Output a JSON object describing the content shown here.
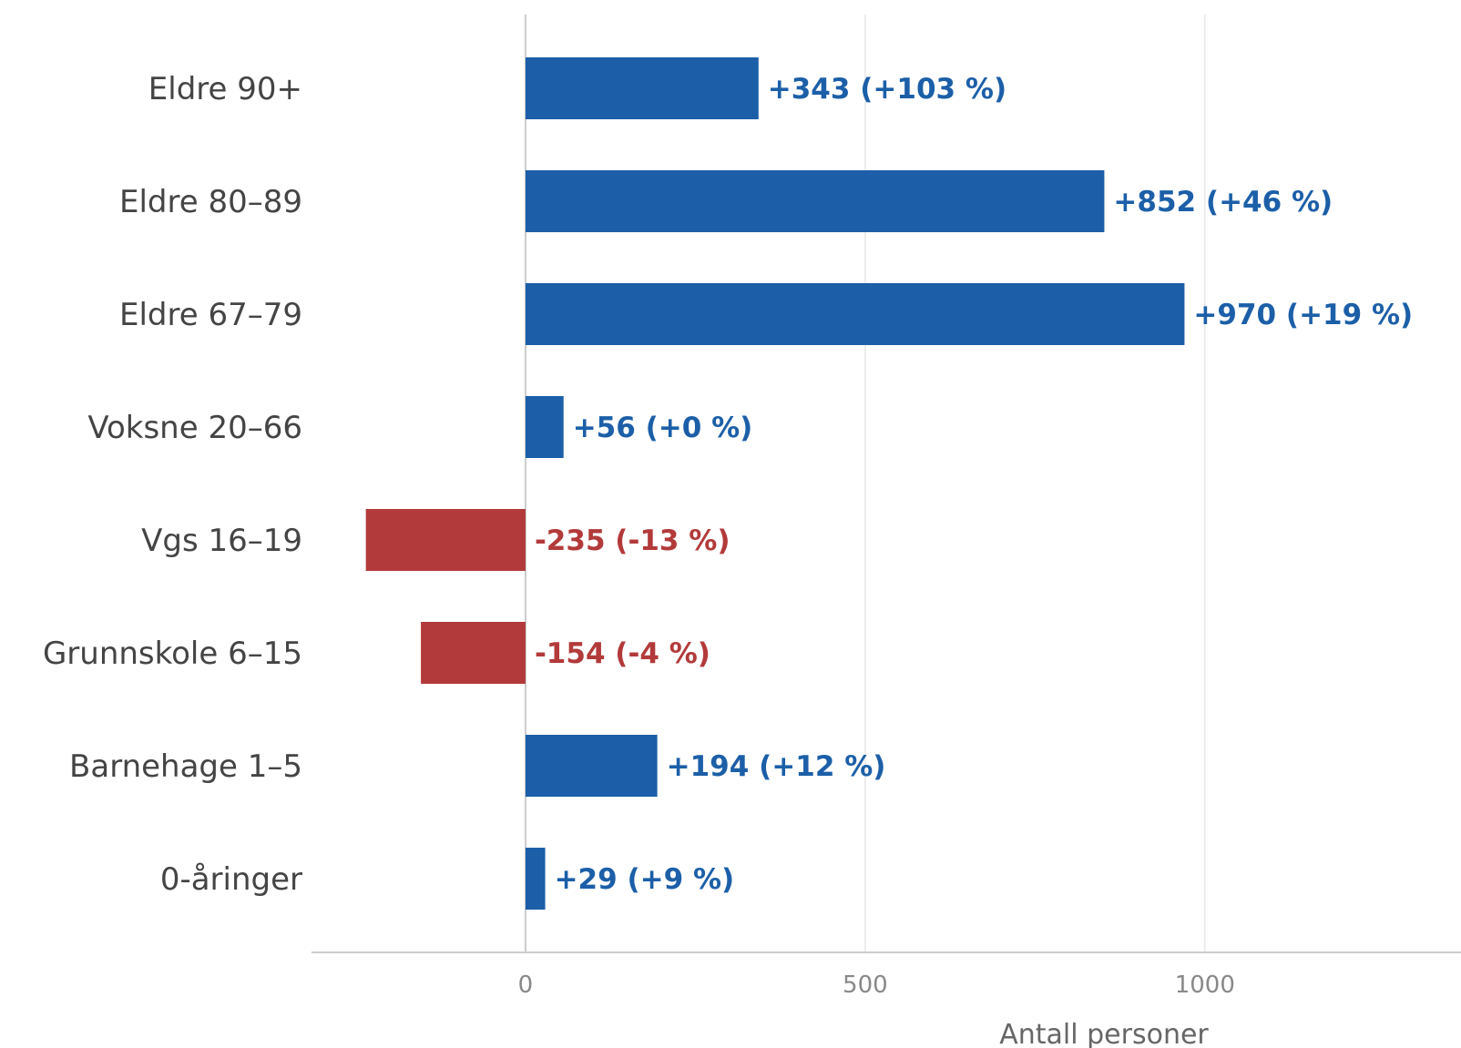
{
  "chart_data": {
    "type": "bar",
    "orientation": "horizontal",
    "categories": [
      "Eldre 90+",
      "Eldre 80–89",
      "Eldre 67–79",
      "Voksne 20–66",
      "Vgs 16–19",
      "Grunnskole 6–15",
      "Barnehage 1–5",
      "0-åringer"
    ],
    "values": [
      343,
      852,
      970,
      56,
      -235,
      -154,
      194,
      29
    ],
    "data_labels": [
      "+343 (+103 %)",
      "+852 (+46 %)",
      "+970 (+19 %)",
      "+56 (+0 %)",
      "-235 (-13 %)",
      "-154 (-4 %)",
      "+194 (+12 %)",
      "+29 (+9 %)"
    ],
    "xlabel": "Antall personer",
    "ylabel": "",
    "title": "",
    "xlim": [
      -315,
      1377
    ],
    "xticks": [
      0,
      500,
      1000
    ],
    "xtick_labels": [
      "0",
      "500",
      "1000"
    ],
    "grid": "vertical",
    "colors": {
      "positive": "#1c5fa8",
      "negative": "#b33a3a",
      "grid": "#e6e6e6",
      "zero_line": "#cccccc",
      "axis": "#cccccc"
    }
  }
}
